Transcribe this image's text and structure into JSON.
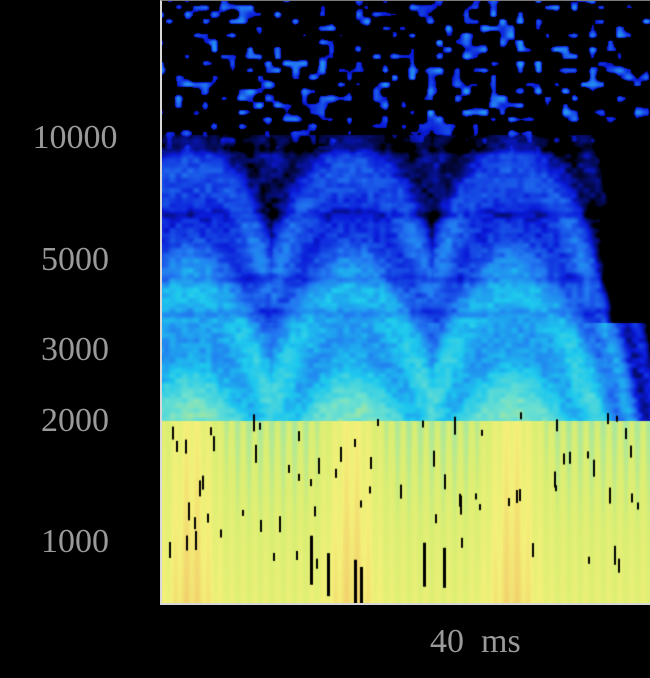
{
  "chart_data": {
    "type": "heatmap",
    "title": "",
    "xlabel": "40  ms",
    "ylabel": "",
    "yscale": "log",
    "ylim": [
      700,
      22000
    ],
    "ytick_labels": [
      "10000",
      "5000",
      "3000",
      "2000",
      "1000"
    ],
    "ytick_values": [
      10000,
      5000,
      3000,
      2000,
      1000
    ],
    "xlim_ms": [
      0,
      64
    ],
    "time_axis_label_value_ms": 40,
    "colormap": "parula",
    "colormap_stops": [
      "#000000",
      "#0a1ad8",
      "#2277f0",
      "#1ec8ee",
      "#6de0cf",
      "#d9ee73",
      "#f4f07a",
      "#f0c768"
    ],
    "pitch_period_ms": 21,
    "pitch_pulse_centers_ms": [
      4,
      25,
      46
    ],
    "energy_floor_hz": 9000,
    "dark_bands_hz": [
      9500,
      6500,
      4500,
      3700
    ],
    "bright_region_top_hz": 2000,
    "marker_color": "#000000",
    "note": ""
  },
  "colors": {
    "background": "#000000",
    "tick_text": "#9a9a9a",
    "axis_line": "#d8d8d8"
  }
}
